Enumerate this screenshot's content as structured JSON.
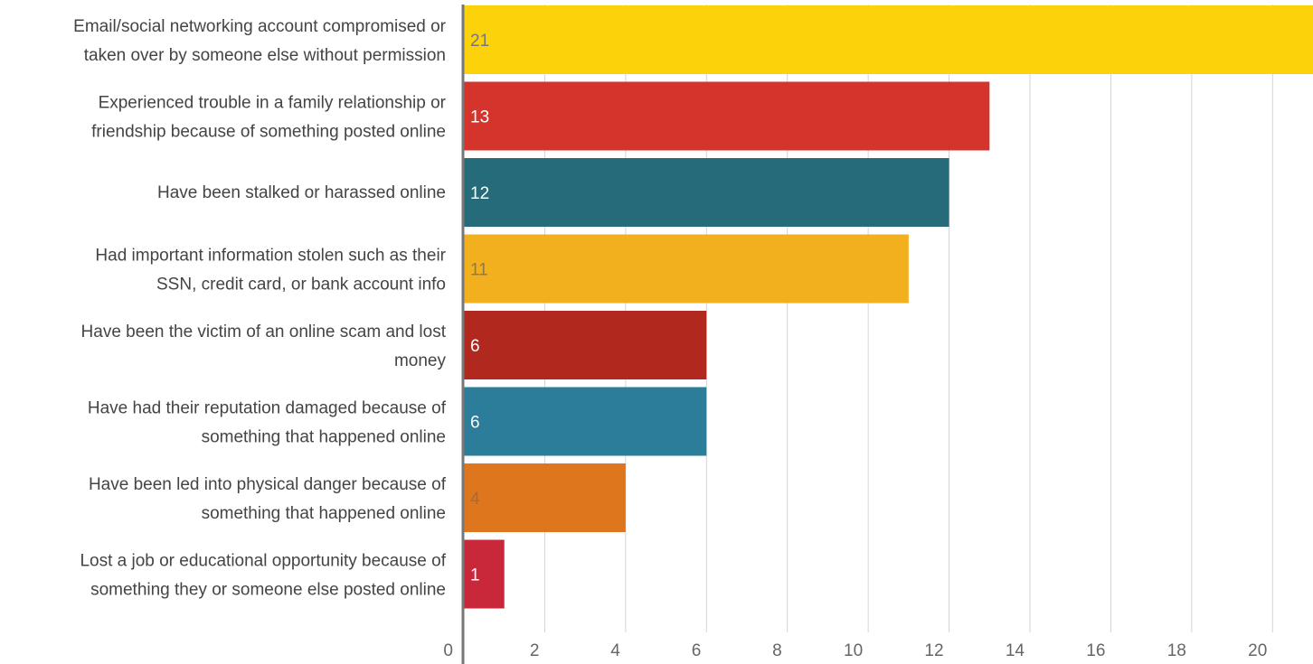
{
  "chart_data": {
    "type": "bar",
    "orientation": "horizontal",
    "title": "",
    "xlabel": "",
    "ylabel": "",
    "xlim": [
      0,
      21
    ],
    "xticks": [
      0,
      2,
      4,
      6,
      8,
      10,
      12,
      14,
      16,
      18,
      20
    ],
    "grid": true,
    "legend": "none",
    "categories": [
      [
        "Email/social networking account compromised or",
        "taken over by someone else without permission"
      ],
      [
        "Experienced trouble in a family relationship or",
        "friendship because of something posted online"
      ],
      [
        "Have been stalked or harassed online"
      ],
      [
        "Had important information stolen such as their",
        "SSN, credit card, or bank account info"
      ],
      [
        "Have been the victim of an online scam and lost",
        "money"
      ],
      [
        "Have had their reputation damaged because of",
        "something that happened online"
      ],
      [
        "Have been led into physical danger because of",
        "something that happened online"
      ],
      [
        "Lost a job or educational opportunity because of",
        "something they or someone else posted online"
      ]
    ],
    "values": [
      21,
      13,
      12,
      11,
      6,
      6,
      4,
      1
    ],
    "colors": [
      "#fcd20a",
      "#d4342c",
      "#256b7a",
      "#f2b01e",
      "#b0281e",
      "#2b7d99",
      "#dd761c",
      "#c9283a"
    ],
    "label_colors": [
      "#777777",
      "#ffffff",
      "#ffffff",
      "#8a7a50",
      "#ffffff",
      "#ffffff",
      "#a86a3a",
      "#ffffff"
    ]
  }
}
